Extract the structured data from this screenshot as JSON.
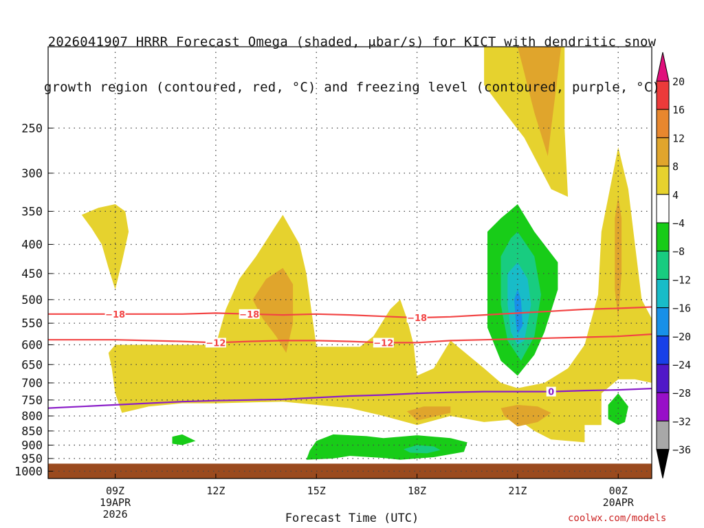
{
  "colors": {
    "positive_4_8": "#e6d22e",
    "positive_8_12": "#e0a52c",
    "positive_12_16": "#e8872e",
    "positive_16_20": "#ec3a3a",
    "positive_above_20": "#e0107c",
    "neutral": "#ffffff",
    "negative_4_8": "#18cc18",
    "negative_8_12": "#18cc80",
    "negative_12_16": "#18bcc8",
    "negative_16_20": "#1890e8",
    "negative_20_24": "#1840e8",
    "negative_24_28": "#5018c8",
    "negative_28_32": "#9810c8",
    "negative_32_36": "#a8a8a8",
    "negative_below_36": "#000000",
    "dgz_contour": "#f24444",
    "freezing_contour": "#8a1cc8",
    "ground": "#9a4a1e",
    "grid": "#444444"
  },
  "chart_data": {
    "type": "heatmap",
    "title_line1": "2026041907 HRRR Forecast Omega (shaded, μbar/s) for KICT with dendritic snow",
    "title_line2": "growth region (contoured, red, °C) and freezing level (contoured, purple, °C)",
    "xlabel": "Forecast Time (UTC)",
    "ylabel": "",
    "xlim": [
      7,
      25
    ],
    "ylim_hPa": [
      1030,
      180
    ],
    "x_ticks": [
      {
        "value": 9,
        "label": "09Z",
        "sub1": "19APR",
        "sub2": "2026"
      },
      {
        "value": 12,
        "label": "12Z",
        "sub1": "",
        "sub2": ""
      },
      {
        "value": 15,
        "label": "15Z",
        "sub1": "",
        "sub2": ""
      },
      {
        "value": 18,
        "label": "18Z",
        "sub1": "",
        "sub2": ""
      },
      {
        "value": 21,
        "label": "21Z",
        "sub1": "",
        "sub2": ""
      },
      {
        "value": 24,
        "label": "00Z",
        "sub1": "20APR",
        "sub2": ""
      }
    ],
    "y_ticks": [
      250,
      300,
      350,
      400,
      450,
      500,
      550,
      600,
      650,
      700,
      750,
      800,
      850,
      900,
      950,
      1000
    ],
    "y_labels": [
      "250",
      "300",
      "350",
      "400",
      "450",
      "500",
      "550",
      "600",
      "650",
      "700",
      "750",
      "800",
      "850",
      "900",
      "950",
      "1000"
    ],
    "ground_level_hPa": 970,
    "contours": [
      {
        "name": "dgz-minus18",
        "value": -18,
        "label": "−18",
        "points": [
          [
            7,
            530
          ],
          [
            9,
            530
          ],
          [
            11,
            530
          ],
          [
            12,
            528
          ],
          [
            13,
            530
          ],
          [
            14,
            532
          ],
          [
            15,
            530
          ],
          [
            16,
            532
          ],
          [
            17,
            535
          ],
          [
            18,
            538
          ],
          [
            19,
            536
          ],
          [
            20,
            532
          ],
          [
            21,
            528
          ],
          [
            22,
            524
          ],
          [
            23,
            520
          ],
          [
            24,
            518
          ],
          [
            25,
            515
          ]
        ],
        "label_at": [
          9,
          13,
          18
        ]
      },
      {
        "name": "dgz-minus12",
        "value": -12,
        "label": "−12",
        "points": [
          [
            7,
            588
          ],
          [
            9,
            588
          ],
          [
            10,
            590
          ],
          [
            11,
            592
          ],
          [
            12,
            595
          ],
          [
            13,
            592
          ],
          [
            14,
            590
          ],
          [
            15,
            590
          ],
          [
            16,
            592
          ],
          [
            17,
            595
          ],
          [
            18,
            595
          ],
          [
            19,
            590
          ],
          [
            20,
            588
          ],
          [
            21,
            586
          ],
          [
            22,
            584
          ],
          [
            23,
            582
          ],
          [
            24,
            580
          ],
          [
            25,
            575
          ]
        ],
        "label_at": [
          12,
          17
        ]
      },
      {
        "name": "freezing-level",
        "value": 0,
        "label": "0",
        "points": [
          [
            7,
            775
          ],
          [
            9,
            765
          ],
          [
            11,
            755
          ],
          [
            12,
            752
          ],
          [
            13,
            750
          ],
          [
            14,
            748
          ],
          [
            15,
            743
          ],
          [
            16,
            738
          ],
          [
            17,
            735
          ],
          [
            18,
            730
          ],
          [
            19,
            727
          ],
          [
            20,
            725
          ],
          [
            21,
            725
          ],
          [
            22,
            725
          ],
          [
            23,
            722
          ],
          [
            24,
            720
          ],
          [
            25,
            716
          ]
        ],
        "label_at": [
          22
        ]
      }
    ],
    "regions": [
      {
        "band": "4 to 8",
        "color_key": "positive_4_8",
        "points": [
          [
            8.0,
            355
          ],
          [
            8.5,
            345
          ],
          [
            9.0,
            340
          ],
          [
            9.3,
            350
          ],
          [
            9.4,
            380
          ],
          [
            9.2,
            430
          ],
          [
            9.0,
            480
          ],
          [
            8.8,
            440
          ],
          [
            8.6,
            400
          ],
          [
            8.3,
            375
          ]
        ]
      },
      {
        "band": "4 to 8",
        "color_key": "positive_4_8",
        "points": [
          [
            9.0,
            600
          ],
          [
            10.0,
            600
          ],
          [
            11.0,
            600
          ],
          [
            12.0,
            600
          ],
          [
            12.3,
            520
          ],
          [
            12.7,
            460
          ],
          [
            13.2,
            420
          ],
          [
            13.8,
            370
          ],
          [
            14.0,
            355
          ],
          [
            14.5,
            400
          ],
          [
            14.7,
            450
          ],
          [
            15.0,
            605
          ],
          [
            16.3,
            605
          ],
          [
            16.7,
            580
          ],
          [
            17.2,
            520
          ],
          [
            17.5,
            500
          ],
          [
            17.7,
            540
          ],
          [
            17.9,
            600
          ],
          [
            18.0,
            680
          ],
          [
            18.5,
            660
          ],
          [
            19.0,
            590
          ],
          [
            20.0,
            660
          ],
          [
            20.5,
            700
          ],
          [
            21.0,
            715
          ],
          [
            21.8,
            700
          ],
          [
            22.5,
            660
          ],
          [
            23.0,
            600
          ],
          [
            23.4,
            490
          ],
          [
            23.5,
            380
          ],
          [
            24.0,
            270
          ],
          [
            24.3,
            320
          ],
          [
            24.5,
            400
          ],
          [
            24.7,
            500
          ],
          [
            25.0,
            540
          ],
          [
            25.0,
            700
          ],
          [
            24.5,
            690
          ],
          [
            24.0,
            690
          ],
          [
            23.5,
            730
          ],
          [
            23.5,
            830
          ],
          [
            23.0,
            830
          ],
          [
            23.0,
            890
          ],
          [
            22.0,
            880
          ],
          [
            21.5,
            850
          ],
          [
            21.0,
            810
          ],
          [
            20.0,
            820
          ],
          [
            19.0,
            800
          ],
          [
            18.0,
            830
          ],
          [
            17.0,
            800
          ],
          [
            16.0,
            775
          ],
          [
            15.0,
            765
          ],
          [
            14.0,
            755
          ],
          [
            12.0,
            760
          ],
          [
            11.0,
            760
          ],
          [
            10.0,
            770
          ],
          [
            9.2,
            790
          ],
          [
            9.0,
            730
          ],
          [
            8.9,
            660
          ],
          [
            8.8,
            620
          ]
        ]
      },
      {
        "band": "4 to 8",
        "color_key": "positive_4_8",
        "points": [
          [
            20.0,
            180
          ],
          [
            21.0,
            180
          ],
          [
            22.4,
            180
          ],
          [
            22.4,
            250
          ],
          [
            22.5,
            330
          ],
          [
            22.0,
            320
          ],
          [
            21.2,
            260
          ],
          [
            20.5,
            230
          ],
          [
            20.0,
            210
          ]
        ]
      },
      {
        "band": "8 to 12",
        "color_key": "positive_8_12",
        "points": [
          [
            13.1,
            500
          ],
          [
            13.5,
            460
          ],
          [
            14.0,
            440
          ],
          [
            14.3,
            470
          ],
          [
            14.3,
            550
          ],
          [
            14.1,
            620
          ],
          [
            13.8,
            580
          ],
          [
            13.4,
            540
          ]
        ]
      },
      {
        "band": "8 to 12",
        "color_key": "positive_8_12",
        "points": [
          [
            21.0,
            180
          ],
          [
            22.3,
            180
          ],
          [
            22.0,
            250
          ],
          [
            21.9,
            280
          ],
          [
            21.5,
            235
          ],
          [
            21.2,
            200
          ]
        ]
      },
      {
        "band": "8 to 12",
        "color_key": "positive_8_12",
        "points": [
          [
            23.9,
            360
          ],
          [
            24.0,
            330
          ],
          [
            24.1,
            360
          ],
          [
            24.1,
            450
          ],
          [
            24.0,
            540
          ],
          [
            23.9,
            480
          ],
          [
            23.9,
            420
          ]
        ]
      },
      {
        "band": "8 to 12",
        "color_key": "positive_8_12",
        "points": [
          [
            17.7,
            785
          ],
          [
            18.2,
            770
          ],
          [
            19.0,
            770
          ],
          [
            19.0,
            790
          ],
          [
            18.0,
            815
          ]
        ]
      },
      {
        "band": "8 to 12",
        "color_key": "positive_8_12",
        "points": [
          [
            20.5,
            775
          ],
          [
            21.0,
            765
          ],
          [
            21.6,
            770
          ],
          [
            22.0,
            790
          ],
          [
            21.6,
            820
          ],
          [
            21.0,
            835
          ],
          [
            20.6,
            800
          ]
        ]
      },
      {
        "band": "-4 to -8",
        "color_key": "negative_4_8",
        "points": [
          [
            20.1,
            380
          ],
          [
            20.5,
            360
          ],
          [
            21.0,
            340
          ],
          [
            21.5,
            380
          ],
          [
            22.2,
            430
          ],
          [
            22.2,
            480
          ],
          [
            21.8,
            570
          ],
          [
            21.5,
            625
          ],
          [
            21.0,
            680
          ],
          [
            20.5,
            640
          ],
          [
            20.1,
            560
          ],
          [
            20.1,
            470
          ]
        ]
      },
      {
        "band": "-8 to -12",
        "color_key": "negative_8_12",
        "points": [
          [
            20.5,
            420
          ],
          [
            20.8,
            390
          ],
          [
            21.0,
            380
          ],
          [
            21.5,
            420
          ],
          [
            21.7,
            490
          ],
          [
            21.5,
            580
          ],
          [
            21.1,
            640
          ],
          [
            20.7,
            590
          ],
          [
            20.5,
            510
          ]
        ]
      },
      {
        "band": "-12 to -16",
        "color_key": "negative_12_16",
        "points": [
          [
            20.7,
            450
          ],
          [
            21.0,
            430
          ],
          [
            21.3,
            460
          ],
          [
            21.4,
            510
          ],
          [
            21.2,
            590
          ],
          [
            21.0,
            600
          ],
          [
            20.8,
            570
          ],
          [
            20.7,
            510
          ]
        ]
      },
      {
        "band": "-16 to -20",
        "color_key": "negative_16_20",
        "points": [
          [
            20.9,
            500
          ],
          [
            21.0,
            480
          ],
          [
            21.1,
            500
          ],
          [
            21.15,
            555
          ],
          [
            21.0,
            575
          ],
          [
            20.95,
            550
          ]
        ]
      },
      {
        "band": "-4 to -8",
        "color_key": "negative_4_8",
        "points": [
          [
            10.7,
            870
          ],
          [
            11.0,
            862
          ],
          [
            11.4,
            885
          ],
          [
            11.0,
            900
          ],
          [
            10.7,
            895
          ]
        ]
      },
      {
        "band": "-4 to -8",
        "color_key": "negative_4_8",
        "points": [
          [
            14.8,
            920
          ],
          [
            15.0,
            885
          ],
          [
            15.5,
            862
          ],
          [
            16.5,
            868
          ],
          [
            17.0,
            875
          ],
          [
            18.0,
            865
          ],
          [
            19.0,
            875
          ],
          [
            19.5,
            890
          ],
          [
            19.4,
            925
          ],
          [
            18.5,
            945
          ],
          [
            17.5,
            955
          ],
          [
            17.0,
            948
          ],
          [
            16.0,
            940
          ],
          [
            15.5,
            950
          ],
          [
            14.7,
            955
          ]
        ]
      },
      {
        "band": "-8 to -12",
        "color_key": "negative_8_12",
        "points": [
          [
            17.6,
            915
          ],
          [
            18.0,
            900
          ],
          [
            18.5,
            905
          ],
          [
            18.7,
            918
          ],
          [
            18.3,
            930
          ],
          [
            17.8,
            928
          ]
        ]
      },
      {
        "band": "-4 to -8",
        "color_key": "negative_4_8",
        "points": [
          [
            23.7,
            765
          ],
          [
            24.0,
            730
          ],
          [
            24.3,
            770
          ],
          [
            24.2,
            820
          ],
          [
            24.0,
            830
          ],
          [
            23.7,
            810
          ]
        ]
      }
    ],
    "colorbar": {
      "unit": "μbar/s",
      "boundaries": [
        "20",
        "16",
        "12",
        "8",
        "4",
        "−4",
        "−8",
        "−12",
        "−16",
        "−20",
        "−24",
        "−28",
        "−32",
        "−36"
      ],
      "color_keys": [
        "positive_16_20",
        "positive_12_16",
        "positive_8_12",
        "positive_4_8",
        "neutral",
        "negative_4_8",
        "negative_8_12",
        "negative_12_16",
        "negative_16_20",
        "negative_20_24",
        "negative_24_28",
        "negative_28_32",
        "negative_32_36"
      ],
      "top_arrow_key": "positive_above_20",
      "bottom_arrow_key": "negative_below_36"
    }
  },
  "credit": "coolwx.com/models"
}
